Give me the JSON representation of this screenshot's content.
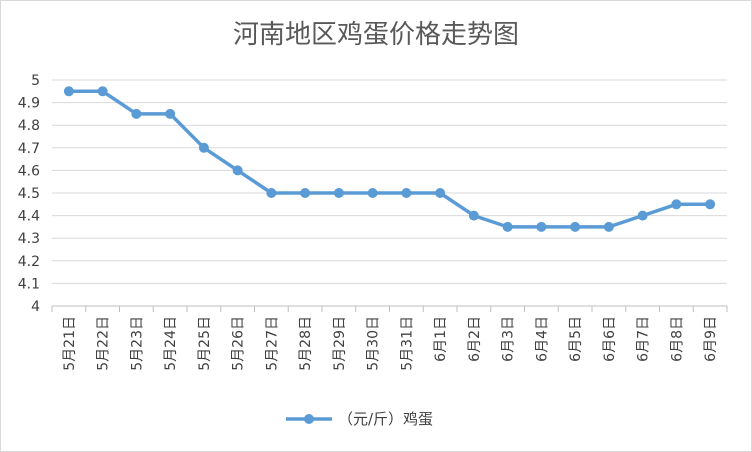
{
  "chart_data": {
    "type": "line",
    "title": "河南地区鸡蛋价格走势图",
    "xlabel": "",
    "ylabel": "",
    "categories": [
      "5月21日",
      "5月22日",
      "5月23日",
      "5月24日",
      "5月25日",
      "5月26日",
      "5月27日",
      "5月28日",
      "5月29日",
      "5月30日",
      "5月31日",
      "6月1日",
      "6月2日",
      "6月3日",
      "6月4日",
      "6月5日",
      "6月6日",
      "6月7日",
      "6月8日",
      "6月9日"
    ],
    "series": [
      {
        "name": "（元/斤）鸡蛋",
        "values": [
          4.95,
          4.95,
          4.85,
          4.85,
          4.7,
          4.6,
          4.5,
          4.5,
          4.5,
          4.5,
          4.5,
          4.5,
          4.4,
          4.35,
          4.35,
          4.35,
          4.35,
          4.4,
          4.45,
          4.45
        ],
        "color": "#5b9bd5"
      }
    ],
    "ylim": [
      4,
      5
    ],
    "yticks": [
      "5",
      "4.9",
      "4.8",
      "4.7",
      "4.6",
      "4.5",
      "4.4",
      "4.3",
      "4.2",
      "4.1",
      "4"
    ],
    "grid": true,
    "legend_position": "bottom"
  }
}
